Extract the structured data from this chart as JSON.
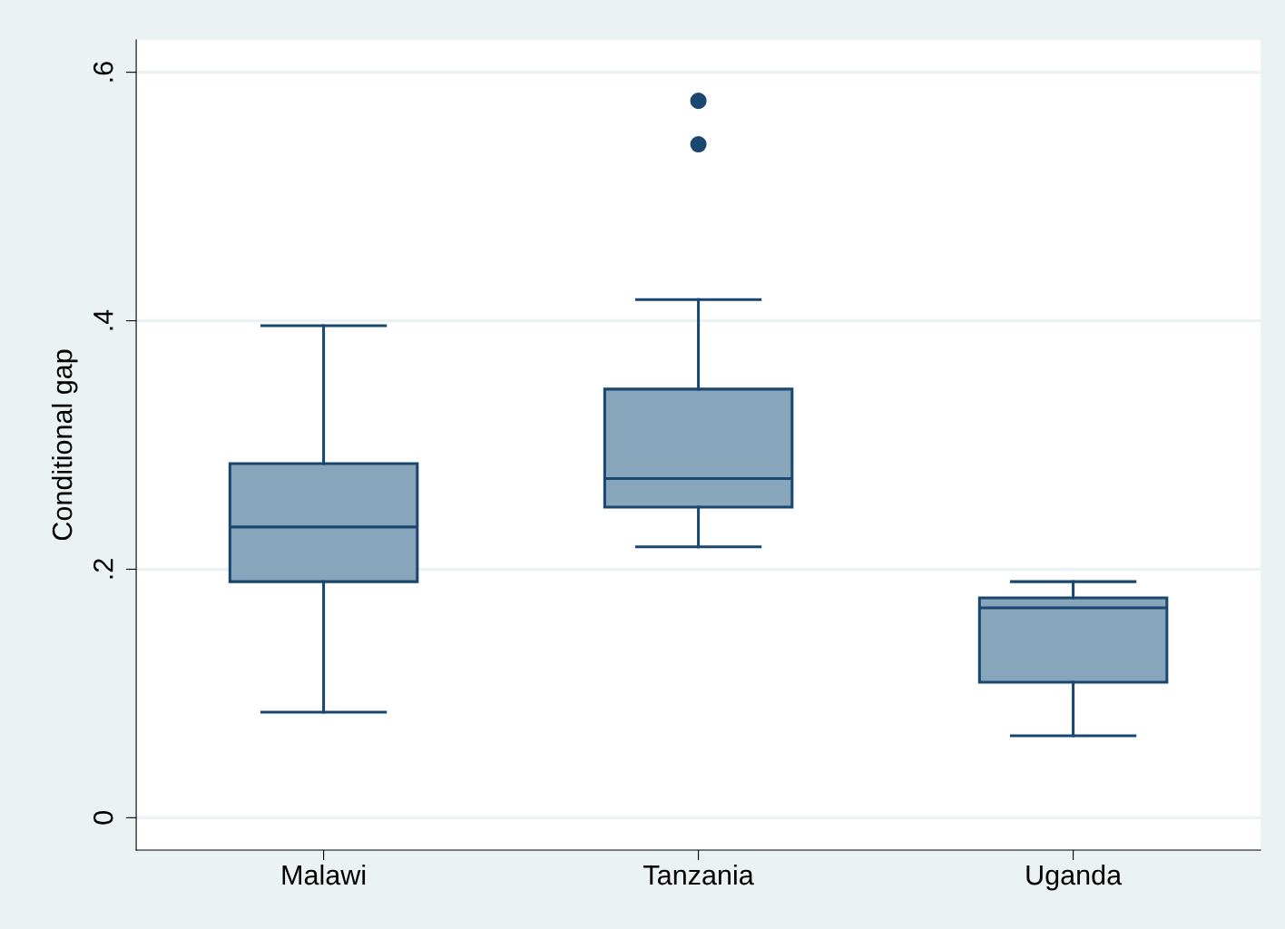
{
  "chart_data": {
    "type": "box",
    "ylabel": "Conditional gap",
    "categories": [
      "Malawi",
      "Tanzania",
      "Uganda"
    ],
    "boxes": [
      {
        "low": 0.085,
        "q1": 0.19,
        "median": 0.234,
        "q3": 0.285,
        "high": 0.396
      },
      {
        "low": 0.218,
        "q1": 0.25,
        "median": 0.273,
        "q3": 0.345,
        "high": 0.417,
        "outliers": [
          0.577,
          0.542
        ]
      },
      {
        "low": 0.066,
        "q1": 0.109,
        "median": 0.169,
        "q3": 0.177,
        "high": 0.19
      }
    ],
    "color": "#87a5bb",
    "ylim": [
      -0.026,
      0.626
    ],
    "yticks": [
      {
        "value": 0,
        "label": "0"
      },
      {
        "value": 0.2,
        "label": ".2"
      },
      {
        "value": 0.4,
        "label": ".4"
      },
      {
        "value": 0.6,
        "label": ".6"
      }
    ],
    "grid": "y"
  }
}
